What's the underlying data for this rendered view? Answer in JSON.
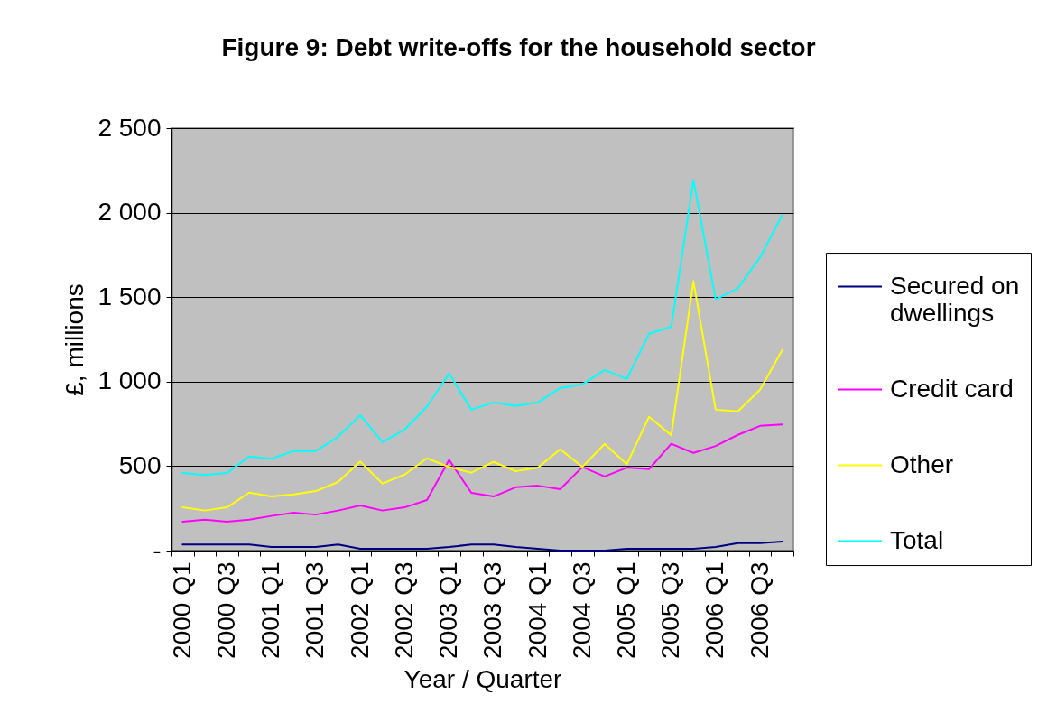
{
  "chart_data": {
    "type": "line",
    "title": "Figure 9: Debt write-offs for the household sector",
    "xlabel": "Year / Quarter",
    "ylabel": "£, millions",
    "categories": [
      "2000 Q1",
      null,
      "2000 Q3",
      null,
      "2001 Q1",
      null,
      "2001 Q3",
      null,
      "2002 Q1",
      null,
      "2002 Q3",
      null,
      "2003 Q1",
      null,
      "2003 Q3",
      null,
      "2004 Q1",
      null,
      "2004 Q3",
      null,
      "2005 Q1",
      null,
      "2005 Q3",
      null,
      "2006 Q1",
      null,
      "2006 Q3",
      null
    ],
    "ylim": [
      0,
      2500
    ],
    "yticks": [
      {
        "value": 0,
        "label": "-"
      },
      500,
      {
        "value": 1000,
        "label": "1 000"
      },
      {
        "value": 1500,
        "label": "1 500"
      },
      {
        "value": 2000,
        "label": "2 000"
      },
      {
        "value": 2500,
        "label": "2 500"
      }
    ],
    "grid": "y",
    "legend": "right",
    "marker": "none",
    "line_style": "solid",
    "series": [
      {
        "name": "Secured on dwellings",
        "color": "#000080",
        "values": [
          36,
          36,
          36,
          36,
          21,
          21,
          21,
          36,
          11,
          11,
          11,
          11,
          21,
          36,
          36,
          21,
          11,
          0,
          0,
          0,
          11,
          11,
          11,
          11,
          21,
          44,
          44,
          53
        ]
      },
      {
        "name": "Credit card",
        "color": "#ff00ff",
        "values": [
          171,
          183,
          171,
          183,
          205,
          224,
          213,
          237,
          267,
          237,
          256,
          299,
          537,
          342,
          320,
          375,
          384,
          363,
          495,
          439,
          491,
          482,
          632,
          578,
          619,
          685,
          738,
          747
        ]
      },
      {
        "name": "Other",
        "color": "#ffff00",
        "values": [
          256,
          237,
          256,
          343,
          320,
          333,
          352,
          406,
          527,
          397,
          450,
          546,
          495,
          461,
          525,
          470,
          491,
          600,
          495,
          632,
          511,
          792,
          683,
          1594,
          834,
          824,
          952,
          1187
        ]
      },
      {
        "name": "Total",
        "color": "#00ffff",
        "values": [
          459,
          448,
          459,
          557,
          544,
          589,
          589,
          674,
          802,
          642,
          717,
          852,
          1048,
          834,
          877,
          856,
          877,
          962,
          984,
          1069,
          1016,
          1283,
          1325,
          2193,
          1487,
          1553,
          1735,
          1987
        ]
      }
    ]
  }
}
